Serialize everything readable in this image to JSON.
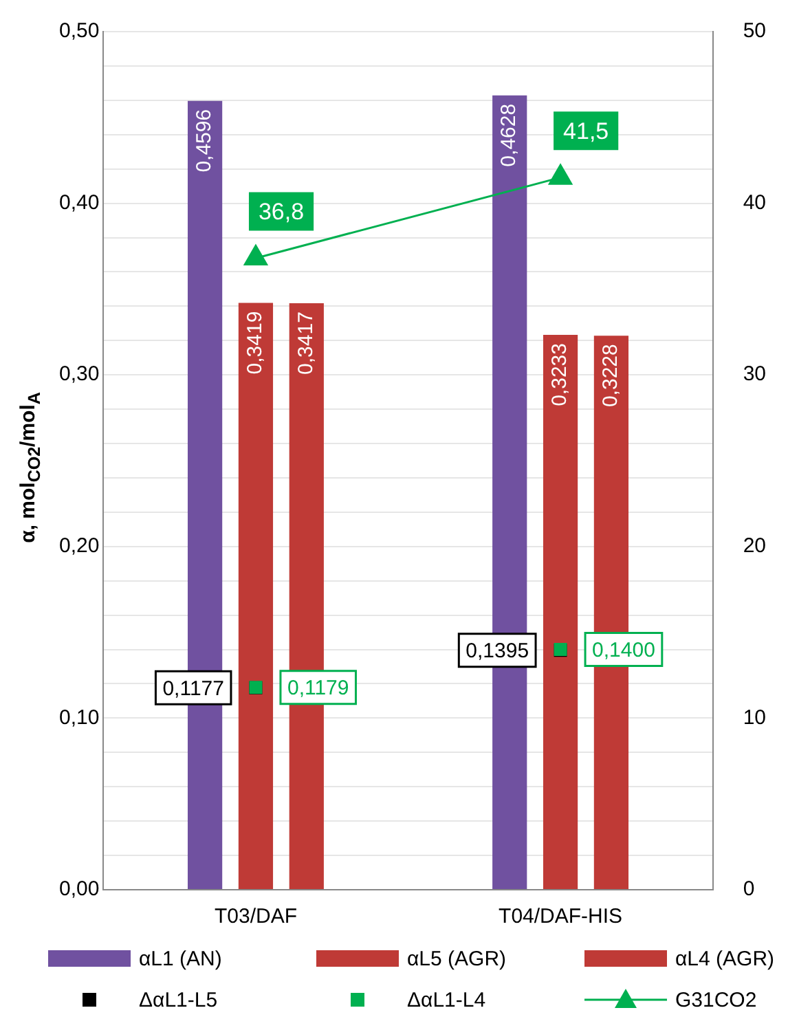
{
  "chart_data": {
    "type": "bar",
    "ylabel": "α, mol$_{CO2}$/mol$_{A}$",
    "categories": [
      "T03/DAF",
      "T04/DAF-HIS"
    ],
    "series": [
      {
        "name": "αL1 (AN)",
        "color": "#7051a0",
        "values": [
          0.4596,
          0.4628
        ],
        "value_labels": [
          "0,4596",
          "0,4628"
        ]
      },
      {
        "name": "αL5 (AGR)",
        "color": "#bf3a36",
        "values": [
          0.3419,
          0.3233
        ],
        "value_labels": [
          "0,3419",
          "0,3233"
        ]
      },
      {
        "name": "αL4 (AGR)",
        "color": "#bf3a36",
        "values": [
          0.3417,
          0.3228
        ],
        "value_labels": [
          "0,3417",
          "0,3228"
        ]
      },
      {
        "name": "ΔαL1-L5",
        "type": "scatter",
        "marker": "square",
        "color": "#000000",
        "values": [
          0.1177,
          0.1395
        ],
        "value_labels": [
          "0,1177",
          "0,1395"
        ]
      },
      {
        "name": "ΔαL1-L4",
        "type": "scatter",
        "marker": "square",
        "color": "#00b050",
        "values": [
          0.1179,
          0.14
        ],
        "value_labels": [
          "0,1179",
          "0,1400"
        ]
      },
      {
        "name": "G31CO2",
        "type": "line",
        "axis": "y2",
        "marker": "triangle",
        "color": "#00b050",
        "values": [
          36.8,
          41.5
        ],
        "value_labels": [
          "36,8",
          "41,5"
        ]
      }
    ],
    "ylim": [
      0,
      0.5
    ],
    "yticks": [
      {
        "value": 0,
        "label": "0,00"
      },
      {
        "value": 0.02,
        "label": null
      },
      {
        "value": 0.04,
        "label": null
      },
      {
        "value": 0.06,
        "label": null
      },
      {
        "value": 0.08,
        "label": null
      },
      {
        "value": 0.1,
        "label": "0,10"
      },
      {
        "value": 0.12,
        "label": null
      },
      {
        "value": 0.14,
        "label": null
      },
      {
        "value": 0.16,
        "label": null
      },
      {
        "value": 0.18,
        "label": null
      },
      {
        "value": 0.2,
        "label": "0,20"
      },
      {
        "value": 0.22,
        "label": null
      },
      {
        "value": 0.24,
        "label": null
      },
      {
        "value": 0.26,
        "label": null
      },
      {
        "value": 0.28,
        "label": null
      },
      {
        "value": 0.3,
        "label": "0,30"
      },
      {
        "value": 0.32,
        "label": null
      },
      {
        "value": 0.34,
        "label": null
      },
      {
        "value": 0.36,
        "label": null
      },
      {
        "value": 0.38,
        "label": null
      },
      {
        "value": 0.4,
        "label": "0,40"
      },
      {
        "value": 0.42,
        "label": null
      },
      {
        "value": 0.44,
        "label": null
      },
      {
        "value": 0.46,
        "label": null
      },
      {
        "value": 0.48,
        "label": null
      },
      {
        "value": 0.5,
        "label": "0,50"
      }
    ],
    "y2lim": [
      0,
      50
    ],
    "y2ticks": [
      0,
      10,
      20,
      30,
      40,
      50
    ],
    "grid": "y",
    "legend": "bottom"
  }
}
